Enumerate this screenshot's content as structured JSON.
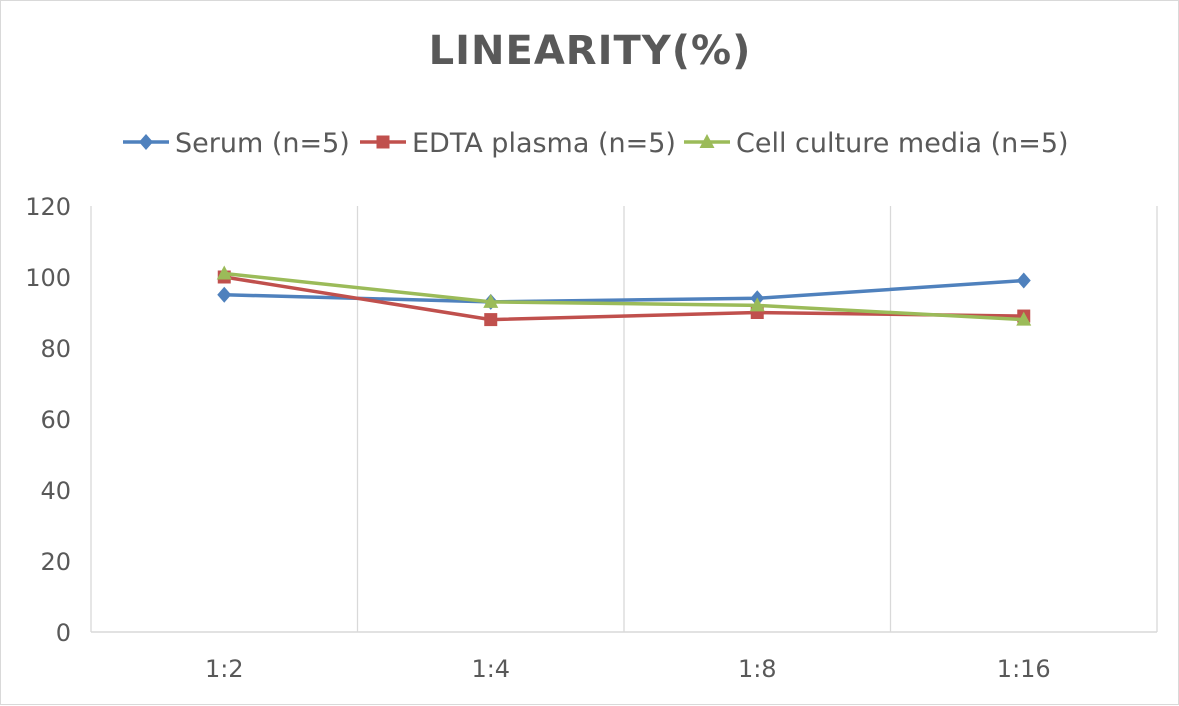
{
  "chart_data": {
    "type": "line",
    "title": "LINEARITY(%)",
    "categories": [
      "1:2",
      "1:4",
      "1:8",
      "1:16"
    ],
    "series": [
      {
        "name": "Serum (n=5)",
        "values": [
          95,
          93,
          94,
          99
        ],
        "color": "#4f81bd",
        "marker": "diamond"
      },
      {
        "name": "EDTA plasma (n=5)",
        "values": [
          100,
          88,
          90,
          89
        ],
        "color": "#c0504d",
        "marker": "square"
      },
      {
        "name": "Cell culture media (n=5)",
        "values": [
          101,
          93,
          92,
          88
        ],
        "color": "#9bbb59",
        "marker": "triangle"
      }
    ],
    "ylim": [
      0,
      120
    ],
    "yticks": [
      0,
      20,
      40,
      60,
      80,
      100,
      120
    ],
    "grid": "vertical",
    "legend": "top"
  }
}
